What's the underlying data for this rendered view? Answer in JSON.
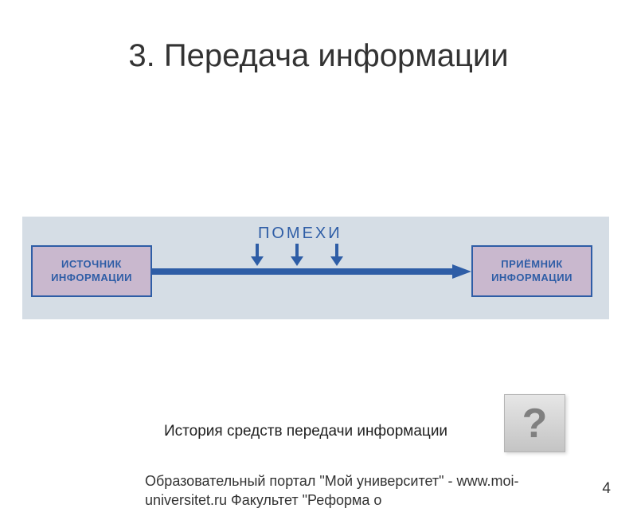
{
  "title": "3. Передача информации",
  "diagram": {
    "type": "flowchart",
    "background_color": "#d5dde5",
    "box_border_color": "#2e5da6",
    "box_fill_color": "#c9b8ce",
    "text_color": "#2e5da6",
    "arrow_color": "#2e5da6",
    "source_box": {
      "line1": "ИСТОЧНИК",
      "line2": "ИНФОРМАЦИИ"
    },
    "receiver_box": {
      "line1": "ПРИЁМНИК",
      "line2": "ИНФОРМАЦИИ"
    },
    "interference_label": "ПОМЕХИ",
    "interference_arrow_count": 3
  },
  "link": {
    "text": "История средств передачи информации",
    "icon": "?"
  },
  "footer": "Образовательный портал \"Мой университет\" - www.moi-universitet.ru Факультет \"Реформа о",
  "page_number": "4",
  "colors": {
    "background": "#ffffff",
    "title_text": "#333333",
    "body_text": "#333333"
  }
}
